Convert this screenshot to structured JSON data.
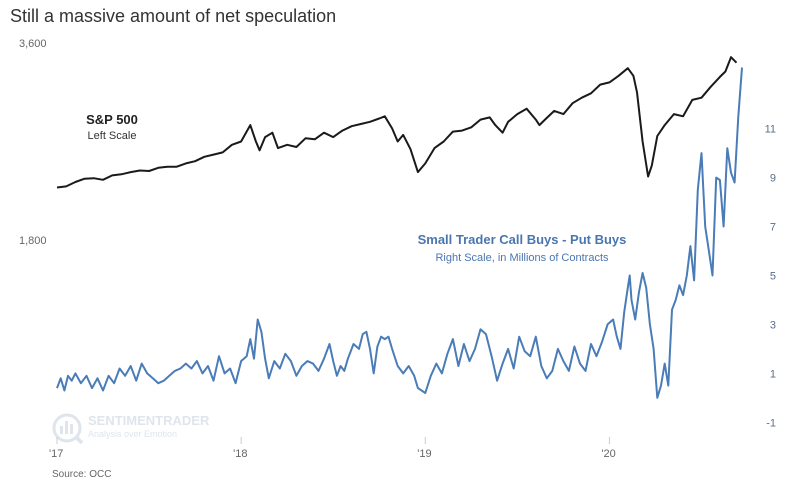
{
  "title": "Still a massive amount of net speculation",
  "source": "Source: OCC",
  "watermark": {
    "name": "SENTIMENTRADER",
    "tagline": "Analysis over Emotion"
  },
  "chart_data": {
    "type": "line",
    "x_ticks": [
      {
        "label": "'17",
        "x": 2017.0
      },
      {
        "label": "'18",
        "x": 2018.0
      },
      {
        "label": "'19",
        "x": 2019.0
      },
      {
        "label": "'20",
        "x": 2020.0
      }
    ],
    "x_range": [
      2017.0,
      2020.72
    ],
    "left_axis": {
      "ticks": [
        "3,600",
        "1,800"
      ],
      "tick_values": [
        3600,
        1800
      ],
      "range": [
        0,
        3600
      ]
    },
    "right_axis": {
      "ticks": [
        "11",
        "9",
        "7",
        "5",
        "3",
        "1",
        "-1"
      ],
      "tick_values": [
        11,
        9,
        7,
        5,
        3,
        1,
        -1
      ],
      "range": [
        -1.6,
        14.5
      ]
    },
    "grid": false,
    "annotations": [
      {
        "title": "S&P 500",
        "subtitle": "Left Scale"
      },
      {
        "title": "Small Trader Call Buys - Put Buys",
        "subtitle": "Right Scale, in Millions of Contracts"
      }
    ],
    "series": [
      {
        "name": "S&P 500",
        "axis": "left",
        "color": "#1a1a1a",
        "points": [
          [
            2017.0,
            2280
          ],
          [
            2017.05,
            2290
          ],
          [
            2017.1,
            2330
          ],
          [
            2017.15,
            2360
          ],
          [
            2017.2,
            2365
          ],
          [
            2017.25,
            2350
          ],
          [
            2017.3,
            2390
          ],
          [
            2017.35,
            2400
          ],
          [
            2017.4,
            2420
          ],
          [
            2017.45,
            2435
          ],
          [
            2017.5,
            2430
          ],
          [
            2017.55,
            2460
          ],
          [
            2017.6,
            2470
          ],
          [
            2017.65,
            2470
          ],
          [
            2017.7,
            2500
          ],
          [
            2017.75,
            2520
          ],
          [
            2017.8,
            2560
          ],
          [
            2017.85,
            2580
          ],
          [
            2017.9,
            2600
          ],
          [
            2017.95,
            2670
          ],
          [
            2018.0,
            2700
          ],
          [
            2018.05,
            2850
          ],
          [
            2018.08,
            2700
          ],
          [
            2018.1,
            2620
          ],
          [
            2018.13,
            2740
          ],
          [
            2018.17,
            2780
          ],
          [
            2018.2,
            2640
          ],
          [
            2018.25,
            2670
          ],
          [
            2018.3,
            2650
          ],
          [
            2018.35,
            2730
          ],
          [
            2018.4,
            2720
          ],
          [
            2018.45,
            2780
          ],
          [
            2018.5,
            2740
          ],
          [
            2018.55,
            2800
          ],
          [
            2018.6,
            2840
          ],
          [
            2018.65,
            2860
          ],
          [
            2018.7,
            2880
          ],
          [
            2018.75,
            2910
          ],
          [
            2018.78,
            2930
          ],
          [
            2018.82,
            2820
          ],
          [
            2018.85,
            2700
          ],
          [
            2018.88,
            2760
          ],
          [
            2018.92,
            2630
          ],
          [
            2018.96,
            2420
          ],
          [
            2019.0,
            2500
          ],
          [
            2019.05,
            2640
          ],
          [
            2019.1,
            2700
          ],
          [
            2019.15,
            2790
          ],
          [
            2019.2,
            2800
          ],
          [
            2019.25,
            2830
          ],
          [
            2019.3,
            2900
          ],
          [
            2019.35,
            2920
          ],
          [
            2019.38,
            2850
          ],
          [
            2019.42,
            2780
          ],
          [
            2019.45,
            2880
          ],
          [
            2019.5,
            2950
          ],
          [
            2019.55,
            3000
          ],
          [
            2019.6,
            2900
          ],
          [
            2019.62,
            2850
          ],
          [
            2019.65,
            2900
          ],
          [
            2019.7,
            2980
          ],
          [
            2019.75,
            2950
          ],
          [
            2019.8,
            3050
          ],
          [
            2019.85,
            3100
          ],
          [
            2019.9,
            3140
          ],
          [
            2019.95,
            3220
          ],
          [
            2020.0,
            3240
          ],
          [
            2020.05,
            3300
          ],
          [
            2020.1,
            3370
          ],
          [
            2020.13,
            3300
          ],
          [
            2020.15,
            3150
          ],
          [
            2020.18,
            2700
          ],
          [
            2020.21,
            2380
          ],
          [
            2020.23,
            2480
          ],
          [
            2020.26,
            2750
          ],
          [
            2020.3,
            2850
          ],
          [
            2020.35,
            2950
          ],
          [
            2020.4,
            2930
          ],
          [
            2020.45,
            3080
          ],
          [
            2020.5,
            3100
          ],
          [
            2020.55,
            3200
          ],
          [
            2020.6,
            3290
          ],
          [
            2020.63,
            3340
          ],
          [
            2020.66,
            3470
          ],
          [
            2020.69,
            3420
          ]
        ]
      },
      {
        "name": "Small Trader Call Buys - Put Buys",
        "axis": "right",
        "color": "#4a7cb8",
        "points": [
          [
            2017.0,
            0.4
          ],
          [
            2017.02,
            0.8
          ],
          [
            2017.04,
            0.3
          ],
          [
            2017.06,
            0.9
          ],
          [
            2017.08,
            0.7
          ],
          [
            2017.1,
            1.0
          ],
          [
            2017.13,
            0.6
          ],
          [
            2017.16,
            0.9
          ],
          [
            2017.19,
            0.4
          ],
          [
            2017.22,
            0.8
          ],
          [
            2017.25,
            0.3
          ],
          [
            2017.28,
            0.9
          ],
          [
            2017.31,
            0.6
          ],
          [
            2017.34,
            1.2
          ],
          [
            2017.37,
            0.9
          ],
          [
            2017.4,
            1.3
          ],
          [
            2017.43,
            0.7
          ],
          [
            2017.46,
            1.4
          ],
          [
            2017.49,
            1.0
          ],
          [
            2017.52,
            0.8
          ],
          [
            2017.55,
            0.6
          ],
          [
            2017.58,
            0.7
          ],
          [
            2017.61,
            0.9
          ],
          [
            2017.64,
            1.1
          ],
          [
            2017.67,
            1.2
          ],
          [
            2017.7,
            1.4
          ],
          [
            2017.73,
            1.2
          ],
          [
            2017.76,
            1.5
          ],
          [
            2017.79,
            1.0
          ],
          [
            2017.82,
            1.3
          ],
          [
            2017.85,
            0.7
          ],
          [
            2017.88,
            1.7
          ],
          [
            2017.91,
            1.0
          ],
          [
            2017.94,
            1.2
          ],
          [
            2017.97,
            0.6
          ],
          [
            2018.0,
            1.5
          ],
          [
            2018.03,
            1.7
          ],
          [
            2018.05,
            2.4
          ],
          [
            2018.07,
            1.6
          ],
          [
            2018.09,
            3.2
          ],
          [
            2018.11,
            2.7
          ],
          [
            2018.13,
            1.6
          ],
          [
            2018.15,
            0.8
          ],
          [
            2018.18,
            1.5
          ],
          [
            2018.21,
            1.2
          ],
          [
            2018.24,
            1.8
          ],
          [
            2018.27,
            1.5
          ],
          [
            2018.3,
            0.9
          ],
          [
            2018.33,
            1.3
          ],
          [
            2018.36,
            1.5
          ],
          [
            2018.39,
            1.4
          ],
          [
            2018.42,
            1.1
          ],
          [
            2018.45,
            1.6
          ],
          [
            2018.48,
            2.2
          ],
          [
            2018.5,
            1.5
          ],
          [
            2018.52,
            0.9
          ],
          [
            2018.54,
            1.3
          ],
          [
            2018.56,
            1.1
          ],
          [
            2018.58,
            1.6
          ],
          [
            2018.61,
            2.2
          ],
          [
            2018.64,
            2.0
          ],
          [
            2018.66,
            2.6
          ],
          [
            2018.68,
            2.7
          ],
          [
            2018.7,
            2.0
          ],
          [
            2018.72,
            1.0
          ],
          [
            2018.74,
            2.1
          ],
          [
            2018.76,
            2.5
          ],
          [
            2018.78,
            2.4
          ],
          [
            2018.8,
            2.5
          ],
          [
            2018.82,
            2.0
          ],
          [
            2018.85,
            1.3
          ],
          [
            2018.88,
            1.0
          ],
          [
            2018.91,
            1.3
          ],
          [
            2018.94,
            0.9
          ],
          [
            2018.96,
            0.4
          ],
          [
            2019.0,
            0.2
          ],
          [
            2019.03,
            0.9
          ],
          [
            2019.06,
            1.4
          ],
          [
            2019.09,
            1.0
          ],
          [
            2019.12,
            1.8
          ],
          [
            2019.15,
            2.4
          ],
          [
            2019.18,
            1.3
          ],
          [
            2019.21,
            2.2
          ],
          [
            2019.24,
            1.5
          ],
          [
            2019.27,
            2.0
          ],
          [
            2019.3,
            2.8
          ],
          [
            2019.33,
            2.6
          ],
          [
            2019.36,
            1.7
          ],
          [
            2019.39,
            0.7
          ],
          [
            2019.42,
            1.4
          ],
          [
            2019.45,
            2.0
          ],
          [
            2019.48,
            1.2
          ],
          [
            2019.51,
            2.5
          ],
          [
            2019.54,
            1.9
          ],
          [
            2019.57,
            1.7
          ],
          [
            2019.6,
            2.5
          ],
          [
            2019.63,
            1.3
          ],
          [
            2019.66,
            0.8
          ],
          [
            2019.69,
            1.1
          ],
          [
            2019.72,
            2.0
          ],
          [
            2019.75,
            1.5
          ],
          [
            2019.78,
            1.1
          ],
          [
            2019.81,
            2.1
          ],
          [
            2019.84,
            1.4
          ],
          [
            2019.87,
            1.1
          ],
          [
            2019.9,
            2.2
          ],
          [
            2019.93,
            1.7
          ],
          [
            2019.96,
            2.3
          ],
          [
            2019.99,
            3.0
          ],
          [
            2020.02,
            3.2
          ],
          [
            2020.04,
            2.5
          ],
          [
            2020.06,
            2.0
          ],
          [
            2020.08,
            3.5
          ],
          [
            2020.1,
            4.5
          ],
          [
            2020.11,
            5.0
          ],
          [
            2020.12,
            4.0
          ],
          [
            2020.14,
            3.2
          ],
          [
            2020.16,
            4.3
          ],
          [
            2020.18,
            5.1
          ],
          [
            2020.2,
            4.5
          ],
          [
            2020.22,
            3.0
          ],
          [
            2020.24,
            2.0
          ],
          [
            2020.26,
            0.0
          ],
          [
            2020.28,
            0.5
          ],
          [
            2020.3,
            1.4
          ],
          [
            2020.32,
            0.5
          ],
          [
            2020.34,
            3.6
          ],
          [
            2020.36,
            4.0
          ],
          [
            2020.38,
            4.6
          ],
          [
            2020.4,
            4.2
          ],
          [
            2020.42,
            5.0
          ],
          [
            2020.44,
            6.2
          ],
          [
            2020.46,
            4.8
          ],
          [
            2020.48,
            8.5
          ],
          [
            2020.5,
            10.0
          ],
          [
            2020.52,
            7.0
          ],
          [
            2020.54,
            6.0
          ],
          [
            2020.56,
            5.0
          ],
          [
            2020.58,
            9.0
          ],
          [
            2020.6,
            8.9
          ],
          [
            2020.62,
            7.0
          ],
          [
            2020.64,
            10.2
          ],
          [
            2020.66,
            9.2
          ],
          [
            2020.68,
            8.8
          ],
          [
            2020.7,
            11.5
          ],
          [
            2020.72,
            13.5
          ]
        ]
      }
    ]
  }
}
